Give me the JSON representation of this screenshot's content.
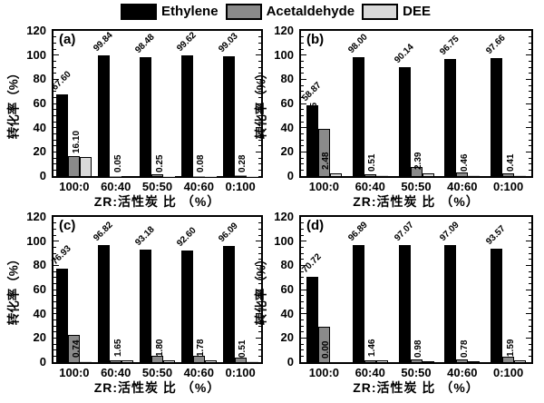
{
  "figure": {
    "background": "#ffffff",
    "frame_color": "#000000"
  },
  "legend": {
    "items": [
      {
        "label": "Ethylene",
        "color": "#000000"
      },
      {
        "label": "Acetaldehyde",
        "color": "#8a8a8a"
      },
      {
        "label": "DEE",
        "color": "#d9d9d9"
      }
    ]
  },
  "axes": {
    "ylabel": "转化率（%）",
    "xlabel": "ZR:活性炭 比 （%）",
    "yticks": [
      "0",
      "20",
      "40",
      "60",
      "80",
      "100",
      "120"
    ],
    "ylim": [
      0,
      120
    ],
    "categories": [
      "100:0",
      "60:40",
      "50:50",
      "40:60",
      "0:100"
    ]
  },
  "chart_data": [
    {
      "type": "bar",
      "panel_label": "(a)",
      "title": "",
      "xlabel": "ZR:活性炭 比 （%）",
      "ylabel": "转化率（%）",
      "ylim": [
        0,
        120
      ],
      "grid": false,
      "legend_position": "top",
      "categories": [
        "100:0",
        "60:40",
        "50:50",
        "40:60",
        "0:100"
      ],
      "series": [
        {
          "name": "Ethylene",
          "color": "#000000",
          "values": [
            67.6,
            99.84,
            98.48,
            99.62,
            99.03
          ],
          "labels": [
            "67.60",
            "99.84",
            "98.48",
            "99.62",
            "99.03"
          ]
        },
        {
          "name": "Acetaldehyde",
          "color": "#8a8a8a",
          "values": [
            16.3,
            0.11,
            1.27,
            0.3,
            0.69
          ],
          "labels": [
            "16.30",
            "0.11",
            "1.27",
            "0.30",
            "0.69"
          ]
        },
        {
          "name": "DEE",
          "color": "#d9d9d9",
          "values": [
            16.1,
            0.05,
            0.25,
            0.08,
            0.28
          ],
          "labels": [
            "16.10",
            "0.05",
            "0.25",
            "0.08",
            "0.28"
          ]
        }
      ]
    },
    {
      "type": "bar",
      "panel_label": "(b)",
      "title": "",
      "xlabel": "ZR:活性炭 比 （%）",
      "ylabel": "转化率（%）",
      "ylim": [
        0,
        120
      ],
      "grid": false,
      "legend_position": "top",
      "categories": [
        "100:0",
        "60:40",
        "50:50",
        "40:60",
        "0:100"
      ],
      "series": [
        {
          "name": "Ethylene",
          "color": "#000000",
          "values": [
            58.87,
            98.0,
            90.14,
            96.75,
            97.66
          ],
          "labels": [
            "58.87",
            "98.00",
            "90.14",
            "96.75",
            "97.66"
          ]
        },
        {
          "name": "Acetaldehyde",
          "color": "#8a8a8a",
          "values": [
            38.65,
            1.49,
            7.47,
            2.79,
            1.93
          ],
          "labels": [
            "38.65",
            "1.49",
            "7.47",
            "2.79",
            "1.93"
          ]
        },
        {
          "name": "DEE",
          "color": "#d9d9d9",
          "values": [
            2.48,
            0.51,
            2.39,
            0.46,
            0.41
          ],
          "labels": [
            "2.48",
            "0.51",
            "2.39",
            "0.46",
            "0.41"
          ]
        }
      ]
    },
    {
      "type": "bar",
      "panel_label": "(c)",
      "title": "",
      "xlabel": "ZR:活性炭 比 （%）",
      "ylabel": "转化率（%）",
      "ylim": [
        0,
        120
      ],
      "grid": false,
      "legend_position": "top",
      "categories": [
        "100:0",
        "60:40",
        "50:50",
        "40:60",
        "0:100"
      ],
      "series": [
        {
          "name": "Ethylene",
          "color": "#000000",
          "values": [
            76.93,
            96.82,
            93.18,
            92.6,
            96.09
          ],
          "labels": [
            "76.93",
            "96.82",
            "93.18",
            "92.60",
            "96.09"
          ]
        },
        {
          "name": "Acetaldehyde",
          "color": "#8a8a8a",
          "values": [
            22.33,
            1.53,
            5.02,
            5.62,
            3.4
          ],
          "labels": [
            "22.33",
            "1.53",
            "5.02",
            "5.62",
            "3.40"
          ]
        },
        {
          "name": "DEE",
          "color": "#d9d9d9",
          "values": [
            0.74,
            1.65,
            1.8,
            1.78,
            0.51
          ],
          "labels": [
            "0.74",
            "1.65",
            "1.80",
            "1.78",
            "0.51"
          ]
        }
      ]
    },
    {
      "type": "bar",
      "panel_label": "(d)",
      "title": "",
      "xlabel": "ZR:活性炭 比 （%）",
      "ylabel": "转化率（%）",
      "ylim": [
        0,
        120
      ],
      "grid": false,
      "legend_position": "top",
      "categories": [
        "100:0",
        "60:40",
        "50:50",
        "40:60",
        "0:100"
      ],
      "series": [
        {
          "name": "Ethylene",
          "color": "#000000",
          "values": [
            70.72,
            96.89,
            97.07,
            97.09,
            93.57
          ],
          "labels": [
            "70.72",
            "96.89",
            "97.07",
            "97.09",
            "93.57"
          ]
        },
        {
          "name": "Acetaldehyde",
          "color": "#8a8a8a",
          "values": [
            29.28,
            1.65,
            1.95,
            2.13,
            4.84
          ],
          "labels": [
            "29.28",
            "1.65",
            "1.95",
            "2.13",
            "4.84"
          ]
        },
        {
          "name": "DEE",
          "color": "#d9d9d9",
          "values": [
            0.0,
            1.46,
            0.98,
            0.78,
            1.59
          ],
          "labels": [
            "0.00",
            "1.46",
            "0.98",
            "0.78",
            "1.59"
          ]
        }
      ]
    }
  ]
}
